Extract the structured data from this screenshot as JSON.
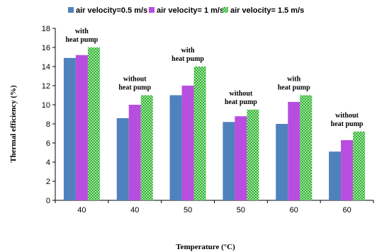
{
  "chart_data": {
    "type": "bar",
    "categories": [
      "40",
      "40",
      "50",
      "50",
      "60",
      "60"
    ],
    "series": [
      {
        "name": "air velocity=0.5 m/s",
        "values": [
          14.9,
          8.6,
          11.0,
          8.2,
          8.0,
          5.1
        ],
        "color": "#4f81bd"
      },
      {
        "name": "air velocity= 1 m/s",
        "values": [
          15.2,
          10.0,
          12.0,
          8.8,
          10.3,
          6.3
        ],
        "color": "#b84ee0"
      },
      {
        "name": "air velocity= 1.5 m/s",
        "values": [
          16.0,
          11.0,
          14.0,
          9.5,
          11.0,
          7.2
        ],
        "color": "#2db52d",
        "pattern": "dotted"
      }
    ],
    "ylabel": "Thermal efficiency (%)",
    "xlabel": "Temperature (°C)",
    "ylim": [
      0,
      18
    ],
    "yticks": [
      0,
      2,
      4,
      6,
      8,
      10,
      12,
      14,
      16,
      18
    ],
    "legend_position": "top",
    "grid": false,
    "annotations": [
      {
        "category_index": 0,
        "lines": [
          "with",
          "heat pump"
        ]
      },
      {
        "category_index": 1,
        "lines": [
          "without",
          "heat pump"
        ]
      },
      {
        "category_index": 2,
        "lines": [
          "with",
          "heat pump"
        ]
      },
      {
        "category_index": 3,
        "lines": [
          "without",
          "heat pump"
        ]
      },
      {
        "category_index": 4,
        "lines": [
          "with",
          "heat pump"
        ]
      },
      {
        "category_index": 5,
        "lines": [
          "without",
          "heat pump"
        ]
      }
    ]
  }
}
